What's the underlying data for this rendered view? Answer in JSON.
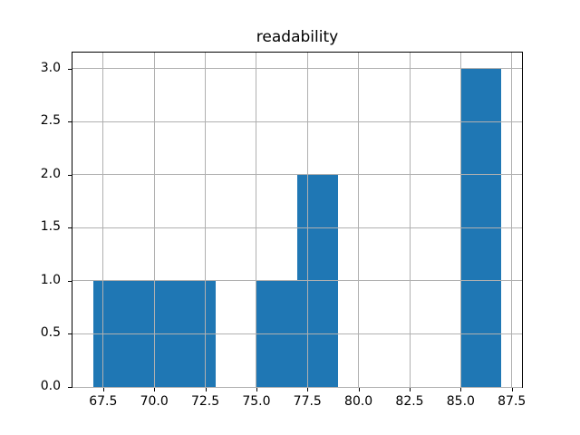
{
  "figure": {
    "background": "#ffffff"
  },
  "chart_data": {
    "type": "bar",
    "subtype": "histogram",
    "title": "readability",
    "xlabel": "",
    "ylabel": "",
    "bin_edges": [
      67,
      69,
      71,
      73,
      75,
      77,
      79,
      81,
      83,
      85,
      87
    ],
    "counts": [
      1,
      1,
      1,
      0,
      1,
      2,
      0,
      0,
      0,
      3
    ],
    "xlim": [
      66,
      88
    ],
    "ylim": [
      0,
      3.15
    ],
    "xticks": [
      67.5,
      70.0,
      72.5,
      75.0,
      77.5,
      80.0,
      82.5,
      85.0,
      87.5
    ],
    "xtick_labels": [
      "67.5",
      "70.0",
      "72.5",
      "75.0",
      "77.5",
      "80.0",
      "82.5",
      "85.0",
      "87.5"
    ],
    "yticks": [
      0.0,
      0.5,
      1.0,
      1.5,
      2.0,
      2.5,
      3.0
    ],
    "ytick_labels": [
      "0.0",
      "0.5",
      "1.0",
      "1.5",
      "2.0",
      "2.5",
      "3.0"
    ],
    "grid": true,
    "grid_over_bars": true,
    "legend": "none",
    "colors": {
      "bar": "#1f77b4",
      "grid": "#b0b0b0",
      "spine": "#000000",
      "text": "#000000",
      "background": "#ffffff"
    }
  }
}
